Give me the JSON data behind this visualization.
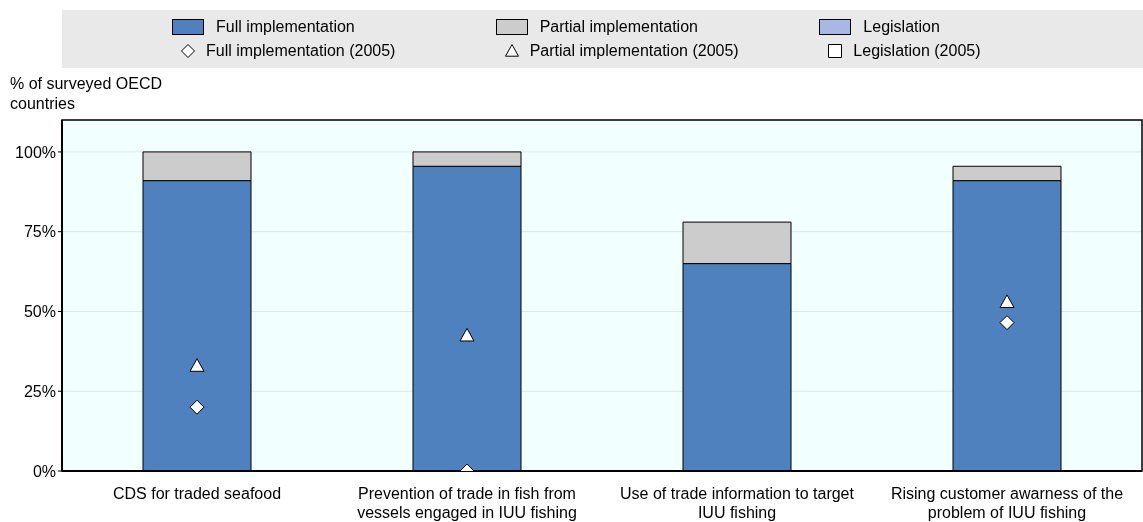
{
  "chart_data": {
    "type": "bar",
    "stacked": true,
    "ylabel": "% of surveyed OECD countries",
    "categories": [
      "CDS for traded seafood",
      "Prevention of trade in fish from vessels engaged in IUU fishing",
      "Use of trade information to target IUU fishing",
      "Rising customer awarness of the problem of IUU fishing"
    ],
    "series": [
      {
        "name": "Full implementation",
        "color": "#4e81bd",
        "values": [
          91,
          95.5,
          65,
          91
        ]
      },
      {
        "name": "Partial implementation",
        "color": "#cccccc",
        "values": [
          9,
          4.5,
          13,
          4.5
        ]
      },
      {
        "name": "Legislation",
        "color": "#a6b8e3",
        "values": [
          null,
          null,
          null,
          null
        ]
      },
      {
        "name": "Full implementation (2005)",
        "type": "scatter",
        "marker": "diamond",
        "color": "#ffffff",
        "values": [
          20,
          0,
          null,
          46.5
        ]
      },
      {
        "name": "Partial implementation (2005)",
        "type": "scatter",
        "marker": "triangle",
        "color": "#ffffff",
        "values": [
          33,
          42.5,
          null,
          53
        ]
      },
      {
        "name": "Legislation (2005)",
        "type": "scatter",
        "marker": "square",
        "color": "#ffffff",
        "values": [
          null,
          null,
          null,
          null
        ]
      }
    ],
    "ylim": [
      0,
      110
    ],
    "yticks": [
      {
        "value": 0,
        "label": "0%"
      },
      {
        "value": 25,
        "label": "25%"
      },
      {
        "value": 50,
        "label": "50%"
      },
      {
        "value": 75,
        "label": "75%"
      },
      {
        "value": 100,
        "label": "100%"
      }
    ],
    "grid": "y",
    "legend": "top"
  }
}
